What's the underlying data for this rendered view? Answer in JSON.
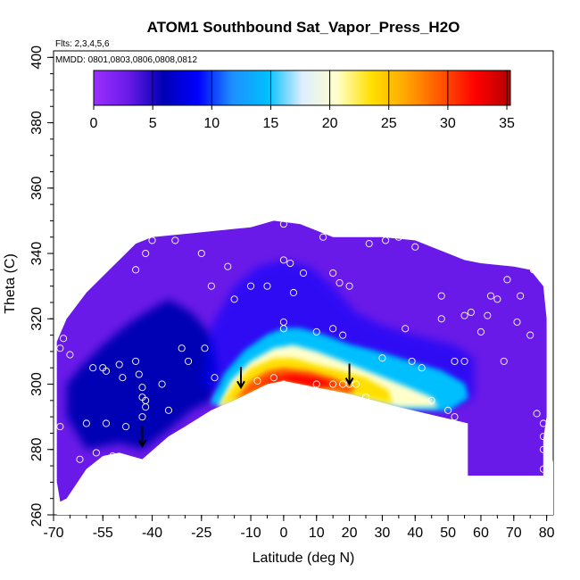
{
  "chart_data": {
    "type": "heatmap",
    "title": "ATOM1 Southbound Sat_Vapor_Press_H2O",
    "flights_note": "Flts: 2,3,4,5,6",
    "dates_note": "MMDD: 0801,0803,0806,0808,0812",
    "xlabel": "Latitude (deg N)",
    "ylabel": "Theta (C)",
    "xlim": [
      -70,
      82
    ],
    "ylim": [
      260,
      402
    ],
    "xticks": [
      -70,
      -55,
      -40,
      -25,
      -10,
      0,
      10,
      20,
      30,
      40,
      50,
      60,
      70,
      80
    ],
    "yticks": [
      260,
      280,
      300,
      320,
      340,
      360,
      380,
      400
    ],
    "colorbar": {
      "ticks": [
        0,
        5,
        10,
        15,
        20,
        25,
        30,
        35
      ],
      "range": [
        0,
        35.3
      ],
      "colors": [
        "#9B30FF",
        "#6A1AE8",
        "#0000B4",
        "#0000FF",
        "#1E90FF",
        "#00BFFF",
        "#DDEEFF",
        "#FFFFCC",
        "#FFE000",
        "#FFA500",
        "#FF5500",
        "#FF0000",
        "#B40000"
      ]
    },
    "boundary_top": [
      [
        -69,
        313
      ],
      [
        -66,
        320
      ],
      [
        -60,
        328
      ],
      [
        -56,
        332
      ],
      [
        -50,
        338
      ],
      [
        -45,
        343
      ],
      [
        -40,
        345
      ],
      [
        -30,
        346
      ],
      [
        -20,
        347
      ],
      [
        -10,
        348
      ],
      [
        -3,
        350
      ],
      [
        5,
        349
      ],
      [
        10,
        347
      ],
      [
        15,
        345
      ],
      [
        20,
        345
      ],
      [
        30,
        345
      ],
      [
        40,
        344
      ],
      [
        45,
        342
      ],
      [
        50,
        340
      ],
      [
        55,
        338
      ],
      [
        60,
        337
      ],
      [
        70,
        336
      ],
      [
        75,
        335
      ],
      [
        79,
        330
      ],
      [
        80,
        320
      ],
      [
        80,
        295
      ]
    ],
    "boundary_bottom": [
      [
        80,
        290
      ],
      [
        79,
        283
      ],
      [
        79,
        272
      ],
      [
        56,
        272
      ],
      [
        56,
        288
      ],
      [
        35,
        293
      ],
      [
        20,
        297
      ],
      [
        10,
        299
      ],
      [
        0,
        301
      ],
      [
        -5,
        300
      ],
      [
        -15,
        295
      ],
      [
        -22,
        292
      ],
      [
        -30,
        287
      ],
      [
        -35,
        284
      ],
      [
        -43,
        277
      ],
      [
        -50,
        279
      ],
      [
        -55,
        278
      ],
      [
        -60,
        274
      ],
      [
        -66,
        265
      ],
      [
        -68,
        264
      ],
      [
        -69,
        270
      ]
    ],
    "core_contours": [
      {
        "level": 15,
        "points": [
          [
            -22,
            294
          ],
          [
            -18,
            303
          ],
          [
            -12,
            310
          ],
          [
            -5,
            315
          ],
          [
            0,
            317
          ],
          [
            5,
            317
          ],
          [
            12,
            315
          ],
          [
            20,
            312
          ],
          [
            28,
            310
          ],
          [
            38,
            307
          ],
          [
            48,
            304
          ],
          [
            55,
            300
          ],
          [
            56,
            296
          ],
          [
            50,
            292
          ],
          [
            35,
            293
          ],
          [
            20,
            297
          ],
          [
            10,
            299
          ],
          [
            0,
            301
          ],
          [
            -15,
            295
          ]
        ]
      },
      {
        "level": 20,
        "points": [
          [
            -20,
            293
          ],
          [
            -16,
            301
          ],
          [
            -10,
            307
          ],
          [
            -3,
            311
          ],
          [
            3,
            312
          ],
          [
            10,
            310
          ],
          [
            18,
            307
          ],
          [
            28,
            303
          ],
          [
            38,
            299
          ],
          [
            45,
            296
          ],
          [
            47,
            293
          ],
          [
            35,
            293
          ],
          [
            20,
            297
          ],
          [
            10,
            299
          ],
          [
            0,
            301
          ],
          [
            -15,
            295
          ]
        ]
      },
      {
        "level": 25,
        "points": [
          [
            -19,
            294
          ],
          [
            -15,
            300
          ],
          [
            -10,
            305
          ],
          [
            -3,
            308
          ],
          [
            3,
            308
          ],
          [
            10,
            306
          ],
          [
            18,
            304
          ],
          [
            25,
            302
          ],
          [
            32,
            298
          ],
          [
            33,
            294
          ],
          [
            20,
            297
          ],
          [
            10,
            299
          ],
          [
            0,
            301
          ],
          [
            -15,
            295
          ]
        ]
      },
      {
        "level": 30,
        "points": [
          [
            -15,
            295
          ],
          [
            -10,
            301
          ],
          [
            -5,
            304
          ],
          [
            0,
            305
          ],
          [
            8,
            304
          ],
          [
            15,
            302
          ],
          [
            22,
            299
          ],
          [
            20,
            297
          ],
          [
            10,
            299
          ],
          [
            0,
            301
          ]
        ]
      },
      {
        "level": 33,
        "points": [
          [
            -8,
            300
          ],
          [
            -3,
            302
          ],
          [
            3,
            303
          ],
          [
            10,
            302
          ],
          [
            16,
            300
          ],
          [
            10,
            299
          ],
          [
            0,
            301
          ]
        ]
      }
    ],
    "blue_band": [
      [
        -20,
        305
      ],
      [
        -22,
        315
      ],
      [
        -28,
        322
      ],
      [
        -35,
        326
      ],
      [
        -42,
        322
      ],
      [
        -48,
        318
      ],
      [
        -55,
        312
      ],
      [
        -62,
        305
      ],
      [
        -66,
        300
      ],
      [
        -66,
        290
      ],
      [
        -60,
        280
      ],
      [
        -50,
        282
      ],
      [
        -43,
        280
      ],
      [
        -35,
        286
      ],
      [
        -28,
        292
      ],
      [
        -22,
        295
      ]
    ],
    "observations": [
      [
        -68,
        311
      ],
      [
        -67,
        314
      ],
      [
        -68,
        287
      ],
      [
        -65,
        309
      ],
      [
        -58,
        305
      ],
      [
        -55,
        305
      ],
      [
        -54,
        304
      ],
      [
        -50,
        306
      ],
      [
        -49,
        302
      ],
      [
        -45,
        307
      ],
      [
        -44,
        303
      ],
      [
        -43,
        299
      ],
      [
        -43,
        296
      ],
      [
        -42,
        293
      ],
      [
        -42,
        295
      ],
      [
        -37,
        300
      ],
      [
        -35,
        292
      ],
      [
        -31,
        311
      ],
      [
        -29,
        307
      ],
      [
        -28,
        287
      ],
      [
        -60,
        288
      ],
      [
        -54,
        288
      ],
      [
        -48,
        287
      ],
      [
        -62,
        277
      ],
      [
        -57,
        279
      ],
      [
        -52,
        278
      ],
      [
        -45,
        335
      ],
      [
        -42,
        340
      ],
      [
        -40,
        344
      ],
      [
        -33,
        344
      ],
      [
        -25,
        340
      ],
      [
        -22,
        330
      ],
      [
        -17,
        336
      ],
      [
        -15,
        326
      ],
      [
        -10,
        330
      ],
      [
        -5,
        330
      ],
      [
        0,
        338
      ],
      [
        2,
        337
      ],
      [
        3,
        328
      ],
      [
        6,
        334
      ],
      [
        12,
        345
      ],
      [
        15,
        334
      ],
      [
        17,
        331
      ],
      [
        20,
        330
      ],
      [
        26,
        343
      ],
      [
        31,
        344
      ],
      [
        35,
        345
      ],
      [
        40,
        342
      ],
      [
        0,
        349
      ],
      [
        0,
        319
      ],
      [
        0,
        317
      ],
      [
        0,
        300
      ],
      [
        0,
        298
      ],
      [
        -3,
        302
      ],
      [
        -8,
        301
      ],
      [
        10,
        300
      ],
      [
        15,
        300
      ],
      [
        18,
        300
      ],
      [
        20,
        300
      ],
      [
        22,
        300
      ],
      [
        25,
        296
      ],
      [
        30,
        308
      ],
      [
        37,
        317
      ],
      [
        39,
        307
      ],
      [
        42,
        305
      ],
      [
        48,
        327
      ],
      [
        48,
        320
      ],
      [
        52,
        307
      ],
      [
        55,
        321
      ],
      [
        55,
        307
      ],
      [
        57,
        322
      ],
      [
        60,
        316
      ],
      [
        62,
        321
      ],
      [
        63,
        327
      ],
      [
        65,
        326
      ],
      [
        67,
        307
      ],
      [
        68,
        332
      ],
      [
        71,
        319
      ],
      [
        72,
        327
      ],
      [
        75,
        315
      ],
      [
        76,
        335
      ],
      [
        77,
        291
      ],
      [
        79,
        288
      ],
      [
        79,
        284
      ],
      [
        79,
        280
      ],
      [
        79,
        274
      ],
      [
        52,
        290
      ],
      [
        50,
        292
      ],
      [
        45,
        295
      ],
      [
        18,
        315
      ],
      [
        15,
        317
      ],
      [
        10,
        316
      ],
      [
        30,
        290
      ],
      [
        35,
        289
      ],
      [
        -24,
        311
      ],
      [
        -21,
        302
      ],
      [
        -43,
        290
      ]
    ],
    "arrows": [
      [
        -43,
        284
      ],
      [
        -13,
        302
      ],
      [
        20,
        303
      ]
    ]
  }
}
